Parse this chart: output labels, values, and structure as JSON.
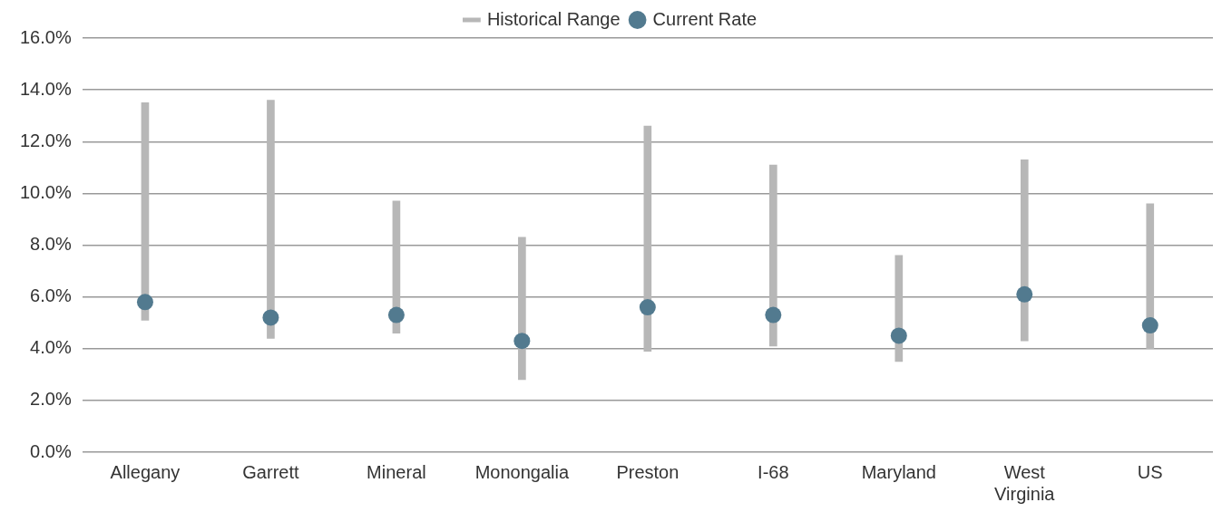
{
  "chart_data": {
    "type": "bar",
    "categories": [
      "Allegany",
      "Garrett",
      "Mineral",
      "Monongalia",
      "Preston",
      "I-68",
      "Maryland",
      "West Virginia",
      "US"
    ],
    "series": [
      {
        "name": "Historical Range",
        "color": "#b7b7b7",
        "base": [
          5.1,
          4.4,
          4.6,
          2.8,
          3.9,
          4.1,
          3.5,
          4.3,
          4.0
        ],
        "values": [
          8.4,
          9.2,
          5.1,
          5.5,
          8.7,
          7.0,
          4.1,
          7.0,
          5.6
        ]
      },
      {
        "name": "Current Rate",
        "type": "scatter",
        "color": "#527a8f",
        "x": [
          "Allegany",
          "Garrett",
          "Mineral",
          "Monongalia",
          "Preston",
          "I-68",
          "Maryland",
          "West Virginia",
          "US"
        ],
        "values": [
          5.8,
          5.2,
          5.3,
          4.3,
          5.6,
          5.3,
          4.5,
          6.1,
          4.9
        ]
      }
    ],
    "ylim": [
      0,
      16
    ],
    "yticks": [
      {
        "value": 0,
        "label": "0.0%"
      },
      {
        "value": 2,
        "label": "2.0%"
      },
      {
        "value": 4,
        "label": "4.0%"
      },
      {
        "value": 6,
        "label": "6.0%"
      },
      {
        "value": 8,
        "label": "8.0%"
      },
      {
        "value": 10,
        "label": "10.0%"
      },
      {
        "value": 12,
        "label": "12.0%"
      },
      {
        "value": 14,
        "label": "14.0%"
      },
      {
        "value": 16,
        "label": "16.0%"
      }
    ],
    "grid": "y",
    "legend": "top",
    "marker": "circle"
  }
}
